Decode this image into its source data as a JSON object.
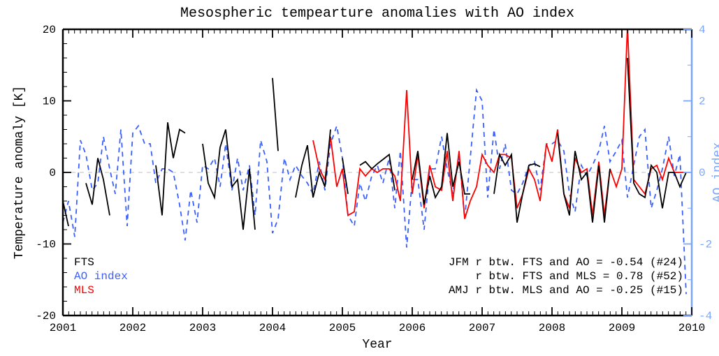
{
  "title": "Mesospheric tempearture anomalies with AO index",
  "xlabel": "Year",
  "ylabel_left": "Temperature anomaly [K]",
  "ylabel_right": "AO index",
  "x": {
    "min": 2001,
    "max": 2010,
    "ticks": [
      2001,
      2002,
      2003,
      2004,
      2005,
      2006,
      2007,
      2008,
      2009,
      2010
    ]
  },
  "y_left": {
    "min": -20,
    "max": 20,
    "ticks": [
      -20,
      -10,
      0,
      10,
      20
    ]
  },
  "y_right": {
    "min": -4,
    "max": 4,
    "ticks": [
      -4,
      -2,
      0,
      2,
      4
    ]
  },
  "colors": {
    "background": "#ffffff",
    "axis": "#000000",
    "text": "#000000",
    "right_axis": "#7aa6ff",
    "fts": "#000000",
    "ao": "#3a5fff",
    "mls": "#ff0000",
    "zero_line": "#cccccc"
  },
  "fonts": {
    "title": 20,
    "axis_label": 18,
    "tick": 16,
    "legend": 16,
    "annotation": 16,
    "right_axis": 16
  },
  "line_widths": {
    "series": 1.8,
    "frame": 2.5,
    "tick": 1.8
  },
  "legend": {
    "items": [
      {
        "label": "FTS",
        "color": "#000000",
        "dash": null
      },
      {
        "label": "AO index",
        "color": "#3a5fff",
        "dash": [
          7,
          6
        ]
      },
      {
        "label": "MLS",
        "color": "#ff0000",
        "dash": null
      }
    ]
  },
  "annotations": [
    "JFM r btw. FTS and AO = -0.54 (#24)",
    "r btw. FTS and MLS = 0.78 (#52)",
    "AMJ r btw. MLS and AO = -0.25 (#15)"
  ],
  "series": {
    "ao": [
      {
        "x": 2001.0,
        "y": -1.4
      },
      {
        "x": 2001.08,
        "y": -0.8
      },
      {
        "x": 2001.17,
        "y": -1.8
      },
      {
        "x": 2001.25,
        "y": 0.9
      },
      {
        "x": 2001.33,
        "y": 0.5
      },
      {
        "x": 2001.42,
        "y": -0.5
      },
      {
        "x": 2001.5,
        "y": -0.3
      },
      {
        "x": 2001.58,
        "y": 1.0
      },
      {
        "x": 2001.67,
        "y": 0.1
      },
      {
        "x": 2001.75,
        "y": -0.6
      },
      {
        "x": 2001.83,
        "y": 1.2
      },
      {
        "x": 2001.92,
        "y": -1.5
      },
      {
        "x": 2002.0,
        "y": 1.1
      },
      {
        "x": 2002.08,
        "y": 1.3
      },
      {
        "x": 2002.17,
        "y": 0.8
      },
      {
        "x": 2002.25,
        "y": 0.8
      },
      {
        "x": 2002.33,
        "y": -0.3
      },
      {
        "x": 2002.42,
        "y": 0.1
      },
      {
        "x": 2002.5,
        "y": 0.1
      },
      {
        "x": 2002.58,
        "y": 0.0
      },
      {
        "x": 2002.67,
        "y": -0.9
      },
      {
        "x": 2002.75,
        "y": -1.9
      },
      {
        "x": 2002.83,
        "y": -0.5
      },
      {
        "x": 2002.92,
        "y": -1.4
      },
      {
        "x": 2003.0,
        "y": 0.2
      },
      {
        "x": 2003.08,
        "y": 0.1
      },
      {
        "x": 2003.17,
        "y": 0.4
      },
      {
        "x": 2003.25,
        "y": -0.4
      },
      {
        "x": 2003.33,
        "y": 0.8
      },
      {
        "x": 2003.42,
        "y": -0.5
      },
      {
        "x": 2003.5,
        "y": 0.4
      },
      {
        "x": 2003.58,
        "y": -0.5
      },
      {
        "x": 2003.67,
        "y": 0.2
      },
      {
        "x": 2003.75,
        "y": -1.2
      },
      {
        "x": 2003.83,
        "y": 0.9
      },
      {
        "x": 2003.92,
        "y": 0.3
      },
      {
        "x": 2004.0,
        "y": -1.7
      },
      {
        "x": 2004.08,
        "y": -1.3
      },
      {
        "x": 2004.17,
        "y": 0.4
      },
      {
        "x": 2004.25,
        "y": -0.2
      },
      {
        "x": 2004.33,
        "y": 0.2
      },
      {
        "x": 2004.42,
        "y": -0.1
      },
      {
        "x": 2004.5,
        "y": -0.3
      },
      {
        "x": 2004.58,
        "y": -0.6
      },
      {
        "x": 2004.67,
        "y": 0.3
      },
      {
        "x": 2004.75,
        "y": -0.5
      },
      {
        "x": 2004.83,
        "y": 0.8
      },
      {
        "x": 2004.92,
        "y": 1.3
      },
      {
        "x": 2005.0,
        "y": 0.4
      },
      {
        "x": 2005.08,
        "y": -1.2
      },
      {
        "x": 2005.17,
        "y": -1.5
      },
      {
        "x": 2005.25,
        "y": -0.3
      },
      {
        "x": 2005.33,
        "y": -0.8
      },
      {
        "x": 2005.42,
        "y": -0.1
      },
      {
        "x": 2005.5,
        "y": 0.2
      },
      {
        "x": 2005.58,
        "y": -0.3
      },
      {
        "x": 2005.67,
        "y": 0.4
      },
      {
        "x": 2005.75,
        "y": -1.0
      },
      {
        "x": 2005.83,
        "y": 0.6
      },
      {
        "x": 2005.92,
        "y": -2.1
      },
      {
        "x": 2006.0,
        "y": -0.2
      },
      {
        "x": 2006.08,
        "y": -0.2
      },
      {
        "x": 2006.17,
        "y": -1.6
      },
      {
        "x": 2006.25,
        "y": 0.1
      },
      {
        "x": 2006.33,
        "y": 0.1
      },
      {
        "x": 2006.42,
        "y": 1.0
      },
      {
        "x": 2006.5,
        "y": 0.1
      },
      {
        "x": 2006.58,
        "y": -0.6
      },
      {
        "x": 2006.67,
        "y": 0.5
      },
      {
        "x": 2006.75,
        "y": -1.3
      },
      {
        "x": 2006.83,
        "y": 0.4
      },
      {
        "x": 2006.92,
        "y": 2.3
      },
      {
        "x": 2007.0,
        "y": 2.0
      },
      {
        "x": 2007.08,
        "y": -0.7
      },
      {
        "x": 2007.17,
        "y": 1.2
      },
      {
        "x": 2007.25,
        "y": 0.1
      },
      {
        "x": 2007.33,
        "y": 0.8
      },
      {
        "x": 2007.42,
        "y": -0.5
      },
      {
        "x": 2007.5,
        "y": -0.6
      },
      {
        "x": 2007.58,
        "y": -0.3
      },
      {
        "x": 2007.67,
        "y": 0.2
      },
      {
        "x": 2007.75,
        "y": 0.3
      },
      {
        "x": 2007.83,
        "y": -0.5
      },
      {
        "x": 2007.92,
        "y": 0.8
      },
      {
        "x": 2008.0,
        "y": 0.8
      },
      {
        "x": 2008.08,
        "y": 0.9
      },
      {
        "x": 2008.17,
        "y": 0.6
      },
      {
        "x": 2008.25,
        "y": -0.6
      },
      {
        "x": 2008.33,
        "y": -1.1
      },
      {
        "x": 2008.42,
        "y": 0.2
      },
      {
        "x": 2008.5,
        "y": -0.1
      },
      {
        "x": 2008.58,
        "y": 0.2
      },
      {
        "x": 2008.67,
        "y": 0.6
      },
      {
        "x": 2008.75,
        "y": 1.3
      },
      {
        "x": 2008.83,
        "y": 0.3
      },
      {
        "x": 2008.92,
        "y": 0.6
      },
      {
        "x": 2009.0,
        "y": 0.9
      },
      {
        "x": 2009.08,
        "y": -0.7
      },
      {
        "x": 2009.17,
        "y": 0.2
      },
      {
        "x": 2009.25,
        "y": 1.0
      },
      {
        "x": 2009.33,
        "y": 1.2
      },
      {
        "x": 2009.42,
        "y": -1.0
      },
      {
        "x": 2009.5,
        "y": -0.5
      },
      {
        "x": 2009.58,
        "y": 0.1
      },
      {
        "x": 2009.67,
        "y": 1.0
      },
      {
        "x": 2009.75,
        "y": -0.1
      },
      {
        "x": 2009.83,
        "y": 0.5
      },
      {
        "x": 2009.92,
        "y": -3.4
      }
    ],
    "fts": [
      [
        {
          "x": 2001.0,
          "y": -4.0
        },
        {
          "x": 2001.08,
          "y": -7.5
        }
      ],
      [
        {
          "x": 2001.33,
          "y": -1.5
        },
        {
          "x": 2001.42,
          "y": -4.5
        },
        {
          "x": 2001.5,
          "y": 2.0
        },
        {
          "x": 2001.58,
          "y": -1.0
        },
        {
          "x": 2001.67,
          "y": -6.0
        }
      ],
      [
        {
          "x": 2002.33,
          "y": 1.0
        },
        {
          "x": 2002.42,
          "y": -6.0
        },
        {
          "x": 2002.5,
          "y": 7.0
        },
        {
          "x": 2002.58,
          "y": 2.0
        },
        {
          "x": 2002.67,
          "y": 6.0
        },
        {
          "x": 2002.75,
          "y": 5.5
        }
      ],
      [
        {
          "x": 2003.0,
          "y": 4.0
        },
        {
          "x": 2003.08,
          "y": -1.5
        },
        {
          "x": 2003.17,
          "y": -3.5
        },
        {
          "x": 2003.25,
          "y": 3.5
        },
        {
          "x": 2003.33,
          "y": 6.0
        },
        {
          "x": 2003.42,
          "y": -2.0
        },
        {
          "x": 2003.5,
          "y": -1.0
        },
        {
          "x": 2003.58,
          "y": -8.0
        },
        {
          "x": 2003.67,
          "y": 0.5
        },
        {
          "x": 2003.75,
          "y": -8.0
        }
      ],
      [
        {
          "x": 2004.0,
          "y": 13.2
        },
        {
          "x": 2004.08,
          "y": 3.0
        }
      ],
      [
        {
          "x": 2004.33,
          "y": -3.5
        },
        {
          "x": 2004.42,
          "y": 1.0
        },
        {
          "x": 2004.5,
          "y": 3.8
        },
        {
          "x": 2004.58,
          "y": -3.5
        },
        {
          "x": 2004.67,
          "y": 0.0
        },
        {
          "x": 2004.75,
          "y": -2.0
        },
        {
          "x": 2004.83,
          "y": 6.0
        }
      ],
      [
        {
          "x": 2005.0,
          "y": 2.0
        },
        {
          "x": 2005.08,
          "y": -3.0
        }
      ],
      [
        {
          "x": 2005.25,
          "y": 1.0
        },
        {
          "x": 2005.33,
          "y": 1.5
        },
        {
          "x": 2005.42,
          "y": 0.5
        },
        {
          "x": 2005.5,
          "y": 1.2
        },
        {
          "x": 2005.58,
          "y": 1.8
        },
        {
          "x": 2005.67,
          "y": 2.5
        },
        {
          "x": 2005.75,
          "y": -2.5
        }
      ],
      [
        {
          "x": 2006.0,
          "y": -1.0
        },
        {
          "x": 2006.08,
          "y": 3.0
        },
        {
          "x": 2006.17,
          "y": -4.5
        },
        {
          "x": 2006.25,
          "y": -0.5
        },
        {
          "x": 2006.33,
          "y": -3.5
        },
        {
          "x": 2006.42,
          "y": -2.0
        },
        {
          "x": 2006.5,
          "y": 5.5
        },
        {
          "x": 2006.58,
          "y": -2.0
        },
        {
          "x": 2006.67,
          "y": 1.5
        },
        {
          "x": 2006.75,
          "y": -3.0
        },
        {
          "x": 2006.83,
          "y": -3.0
        }
      ],
      [
        {
          "x": 2007.17,
          "y": -3.0
        },
        {
          "x": 2007.25,
          "y": 2.5
        },
        {
          "x": 2007.33,
          "y": 1.0
        },
        {
          "x": 2007.42,
          "y": 2.5
        },
        {
          "x": 2007.5,
          "y": -7.0
        },
        {
          "x": 2007.58,
          "y": -3.0
        },
        {
          "x": 2007.67,
          "y": 1.0
        },
        {
          "x": 2007.75,
          "y": 1.2
        },
        {
          "x": 2007.83,
          "y": 0.8
        }
      ],
      [
        {
          "x": 2008.08,
          "y": 5.5
        },
        {
          "x": 2008.17,
          "y": -3.0
        },
        {
          "x": 2008.25,
          "y": -6.0
        },
        {
          "x": 2008.33,
          "y": 3.0
        },
        {
          "x": 2008.42,
          "y": -1.0
        },
        {
          "x": 2008.5,
          "y": 0.0
        },
        {
          "x": 2008.58,
          "y": -7.0
        },
        {
          "x": 2008.67,
          "y": 1.0
        },
        {
          "x": 2008.75,
          "y": -7.0
        },
        {
          "x": 2008.83,
          "y": 0.5
        }
      ],
      [
        {
          "x": 2009.08,
          "y": 16.0
        },
        {
          "x": 2009.17,
          "y": -1.5
        },
        {
          "x": 2009.25,
          "y": -3.0
        },
        {
          "x": 2009.33,
          "y": -3.5
        },
        {
          "x": 2009.42,
          "y": 1.0
        },
        {
          "x": 2009.5,
          "y": 0.0
        },
        {
          "x": 2009.58,
          "y": -5.0
        },
        {
          "x": 2009.67,
          "y": 0.0
        },
        {
          "x": 2009.75,
          "y": 0.0
        },
        {
          "x": 2009.83,
          "y": -2.0
        },
        {
          "x": 2009.92,
          "y": 0.0
        }
      ]
    ],
    "mls": [
      [
        {
          "x": 2004.58,
          "y": 4.5
        },
        {
          "x": 2004.67,
          "y": 0.5
        },
        {
          "x": 2004.75,
          "y": -1.0
        },
        {
          "x": 2004.83,
          "y": 5.0
        },
        {
          "x": 2004.92,
          "y": -2.0
        },
        {
          "x": 2005.0,
          "y": 0.5
        },
        {
          "x": 2005.08,
          "y": -6.0
        },
        {
          "x": 2005.17,
          "y": -5.5
        },
        {
          "x": 2005.25,
          "y": 0.5
        },
        {
          "x": 2005.33,
          "y": -0.5
        },
        {
          "x": 2005.42,
          "y": 0.5
        },
        {
          "x": 2005.5,
          "y": 0.0
        },
        {
          "x": 2005.58,
          "y": 0.5
        },
        {
          "x": 2005.67,
          "y": 0.5
        },
        {
          "x": 2005.75,
          "y": -0.5
        },
        {
          "x": 2005.83,
          "y": -4.0
        },
        {
          "x": 2005.92,
          "y": 11.5
        },
        {
          "x": 2006.0,
          "y": -3.0
        },
        {
          "x": 2006.08,
          "y": 2.5
        },
        {
          "x": 2006.17,
          "y": -5.0
        },
        {
          "x": 2006.25,
          "y": 1.0
        },
        {
          "x": 2006.33,
          "y": -2.0
        },
        {
          "x": 2006.42,
          "y": -2.5
        },
        {
          "x": 2006.5,
          "y": 3.0
        },
        {
          "x": 2006.58,
          "y": -4.0
        },
        {
          "x": 2006.67,
          "y": 3.0
        },
        {
          "x": 2006.75,
          "y": -6.5
        },
        {
          "x": 2006.83,
          "y": -4.0
        },
        {
          "x": 2006.92,
          "y": -2.0
        },
        {
          "x": 2007.0,
          "y": 2.5
        },
        {
          "x": 2007.08,
          "y": 1.0
        },
        {
          "x": 2007.17,
          "y": 0.0
        },
        {
          "x": 2007.25,
          "y": 2.5
        },
        {
          "x": 2007.33,
          "y": 2.5
        },
        {
          "x": 2007.42,
          "y": 2.0
        },
        {
          "x": 2007.5,
          "y": -5.0
        },
        {
          "x": 2007.58,
          "y": -3.0
        },
        {
          "x": 2007.67,
          "y": 0.5
        },
        {
          "x": 2007.75,
          "y": -1.0
        },
        {
          "x": 2007.83,
          "y": -4.0
        },
        {
          "x": 2007.92,
          "y": 4.0
        },
        {
          "x": 2008.0,
          "y": 1.5
        },
        {
          "x": 2008.08,
          "y": 6.0
        },
        {
          "x": 2008.17,
          "y": -3.0
        },
        {
          "x": 2008.25,
          "y": -5.0
        },
        {
          "x": 2008.33,
          "y": 2.0
        },
        {
          "x": 2008.42,
          "y": 0.0
        },
        {
          "x": 2008.5,
          "y": 0.5
        },
        {
          "x": 2008.58,
          "y": -6.0
        },
        {
          "x": 2008.67,
          "y": 1.5
        },
        {
          "x": 2008.75,
          "y": -6.0
        },
        {
          "x": 2008.83,
          "y": 0.5
        },
        {
          "x": 2008.92,
          "y": -2.0
        },
        {
          "x": 2009.0,
          "y": 0.5
        },
        {
          "x": 2009.08,
          "y": 20.5
        },
        {
          "x": 2009.17,
          "y": -1.0
        },
        {
          "x": 2009.25,
          "y": -2.0
        },
        {
          "x": 2009.33,
          "y": -3.0
        },
        {
          "x": 2009.42,
          "y": 0.5
        },
        {
          "x": 2009.5,
          "y": 1.0
        },
        {
          "x": 2009.58,
          "y": -1.0
        },
        {
          "x": 2009.67,
          "y": 2.0
        },
        {
          "x": 2009.75,
          "y": 0.0
        },
        {
          "x": 2009.83,
          "y": 0.0
        },
        {
          "x": 2009.92,
          "y": 0.0
        }
      ]
    ]
  }
}
